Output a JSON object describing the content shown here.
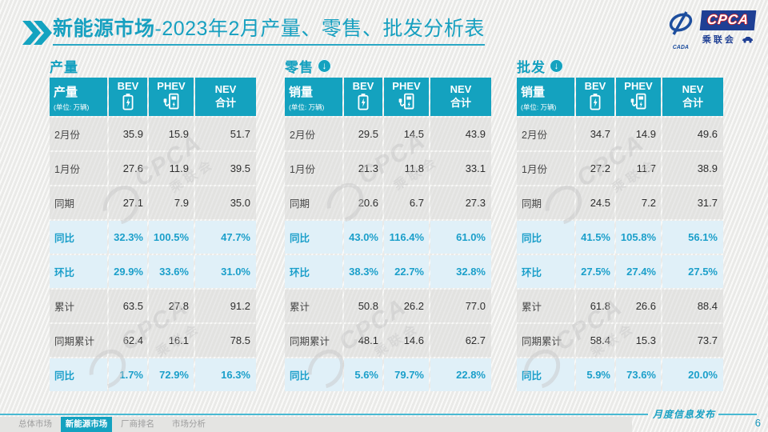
{
  "title": {
    "bold": "新能源市场",
    "rest": "-2023年2月产量、零售、批发分析表"
  },
  "logo": {
    "cpca": "CPCA",
    "cada": "CADA",
    "name_cn": "乘联会"
  },
  "icons": {
    "down_arrow": "↓"
  },
  "colors": {
    "accent_teal": "#14a2bf",
    "highlight_row_bg": "#e0f0f8",
    "percent_text": "#1b9fca",
    "logo_blue": "#1e3f94",
    "logo_red": "#cc2229"
  },
  "tables": [
    {
      "section": "产量",
      "header": {
        "row_label": "产量",
        "unit": "(单位: 万辆)",
        "bev": "BEV",
        "phev": "PHEV",
        "nev_line1": "NEV",
        "nev_line2": "合计"
      },
      "rows": [
        {
          "label": "2月份",
          "bev": "35.9",
          "phev": "15.9",
          "nev": "51.7",
          "highlight": false
        },
        {
          "label": "1月份",
          "bev": "27.6",
          "phev": "11.9",
          "nev": "39.5",
          "highlight": false
        },
        {
          "label": "同期",
          "bev": "27.1",
          "phev": "7.9",
          "nev": "35.0",
          "highlight": false
        },
        {
          "label": "同比",
          "bev": "32.3%",
          "phev": "100.5%",
          "nev": "47.7%",
          "highlight": true
        },
        {
          "label": "环比",
          "bev": "29.9%",
          "phev": "33.6%",
          "nev": "31.0%",
          "highlight": true
        },
        {
          "label": "累计",
          "bev": "63.5",
          "phev": "27.8",
          "nev": "91.2",
          "highlight": false
        },
        {
          "label": "同期累计",
          "bev": "62.4",
          "phev": "16.1",
          "nev": "78.5",
          "highlight": false
        },
        {
          "label": "同比",
          "bev": "1.7%",
          "phev": "72.9%",
          "nev": "16.3%",
          "highlight": true
        }
      ]
    },
    {
      "section": "零售",
      "header": {
        "row_label": "销量",
        "unit": "(单位: 万辆)",
        "bev": "BEV",
        "phev": "PHEV",
        "nev_line1": "NEV",
        "nev_line2": "合计"
      },
      "rows": [
        {
          "label": "2月份",
          "bev": "29.5",
          "phev": "14.5",
          "nev": "43.9",
          "highlight": false
        },
        {
          "label": "1月份",
          "bev": "21.3",
          "phev": "11.8",
          "nev": "33.1",
          "highlight": false
        },
        {
          "label": "同期",
          "bev": "20.6",
          "phev": "6.7",
          "nev": "27.3",
          "highlight": false
        },
        {
          "label": "同比",
          "bev": "43.0%",
          "phev": "116.4%",
          "nev": "61.0%",
          "highlight": true
        },
        {
          "label": "环比",
          "bev": "38.3%",
          "phev": "22.7%",
          "nev": "32.8%",
          "highlight": true
        },
        {
          "label": "累计",
          "bev": "50.8",
          "phev": "26.2",
          "nev": "77.0",
          "highlight": false
        },
        {
          "label": "同期累计",
          "bev": "48.1",
          "phev": "14.6",
          "nev": "62.7",
          "highlight": false
        },
        {
          "label": "同比",
          "bev": "5.6%",
          "phev": "79.7%",
          "nev": "22.8%",
          "highlight": true
        }
      ]
    },
    {
      "section": "批发",
      "header": {
        "row_label": "销量",
        "unit": "(单位: 万辆)",
        "bev": "BEV",
        "phev": "PHEV",
        "nev_line1": "NEV",
        "nev_line2": "合计"
      },
      "rows": [
        {
          "label": "2月份",
          "bev": "34.7",
          "phev": "14.9",
          "nev": "49.6",
          "highlight": false
        },
        {
          "label": "1月份",
          "bev": "27.2",
          "phev": "11.7",
          "nev": "38.9",
          "highlight": false
        },
        {
          "label": "同期",
          "bev": "24.5",
          "phev": "7.2",
          "nev": "31.7",
          "highlight": false
        },
        {
          "label": "同比",
          "bev": "41.5%",
          "phev": "105.8%",
          "nev": "56.1%",
          "highlight": true
        },
        {
          "label": "环比",
          "bev": "27.5%",
          "phev": "27.4%",
          "nev": "27.5%",
          "highlight": true
        },
        {
          "label": "累计",
          "bev": "61.8",
          "phev": "26.6",
          "nev": "88.4",
          "highlight": false
        },
        {
          "label": "同期累计",
          "bev": "58.4",
          "phev": "15.3",
          "nev": "73.7",
          "highlight": false
        },
        {
          "label": "同比",
          "bev": "5.9%",
          "phev": "73.6%",
          "nev": "20.0%",
          "highlight": true
        }
      ]
    }
  ],
  "watermark": {
    "cpca": "CPCA",
    "cn": "乘联会"
  },
  "footer": {
    "publication": "月度信息发布",
    "page": "6",
    "tabs": [
      {
        "label": "总体市场",
        "active": false
      },
      {
        "label": "新能源市场",
        "active": true
      },
      {
        "label": "厂商排名",
        "active": false
      },
      {
        "label": "市场分析",
        "active": false
      }
    ]
  }
}
